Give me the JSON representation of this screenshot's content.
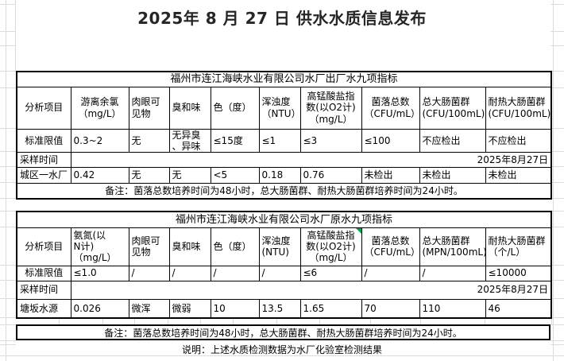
{
  "page": {
    "title": "2025年 8 月 27 日 供水水质信息发布"
  },
  "colors": {
    "table_border": "#000000",
    "grid_line": "#dcdcdc",
    "text": "#000000",
    "comment_marker_green": "#00A550"
  },
  "tables": [
    {
      "title": "福州市连江海峡水业有限公司水厂出厂水九项指标",
      "header": [
        "分析项目",
        "游离余氯\n（mg/L）",
        "肉眼可\n见物",
        "臭和味",
        "色（度）",
        "浑浊度\n（NTU）",
        "高锰酸盐指\n数(以O2计)\n（mg/L）",
        "菌落总数\n（CFU/mL）",
        "总大肠菌群\n(CFU/100mL)",
        "耐热大肠菌群\n(CFU/100mL)"
      ],
      "limit_row": {
        "label": "标准限值",
        "values": [
          "0.3~2",
          "无",
          "无异臭\n、异味",
          "≤15度",
          "≤1",
          "≤3",
          "≤100",
          "不应检出",
          "不应检出"
        ]
      },
      "sampling_row": {
        "label": "采样时间",
        "date": "2025年8月27日"
      },
      "data_rows": [
        {
          "label": "城区一水厂",
          "values": [
            "0.42",
            "无",
            "无",
            "<5",
            "0.18",
            "0.76",
            "未检出",
            "未检出",
            "未检出"
          ]
        }
      ],
      "note": "备注：菌落总数培养时间为48小时，总大肠菌群、耐热大肠菌群培养时间为24小时。"
    },
    {
      "title": "福州市连江海峡水业有限公司水厂原水九项指标",
      "header": [
        "分析项目",
        "氨氮(以\nN计)\n（mg/L）",
        "肉眼可\n见物",
        "臭和味",
        "色（度）",
        "浑浊度\n(NTU)",
        "高锰酸盐指\n数(以O2计)\n（mg/L）",
        "菌落总数\n（CFU/mL）",
        "总大肠菌群\n(MPN/100mL)",
        "耐热大肠菌群\n（个/L）"
      ],
      "limit_row": {
        "label": "标准限值",
        "values": [
          "≤1.0",
          "/",
          "/",
          "/",
          "/",
          "≤6",
          "/",
          "/",
          "≤10000"
        ]
      },
      "sampling_row": {
        "label": "采样时间",
        "date": "2025年8月27日"
      },
      "data_rows": [
        {
          "label": "塘坂水源",
          "values": [
            "0.026",
            "微浑",
            "微弱",
            "10",
            "13.5",
            "1.65",
            "70",
            "110",
            "46"
          ]
        }
      ],
      "note": "备注：菌落总数培养时间为48小时，总大肠菌群、耐热大肠菌群培养时间为24小时。",
      "comment_marker": {
        "header_col": 7,
        "color": "#00A550"
      }
    }
  ],
  "footer": {
    "remark": "说明：上述水质检测数据为水厂化验室检测结果"
  }
}
